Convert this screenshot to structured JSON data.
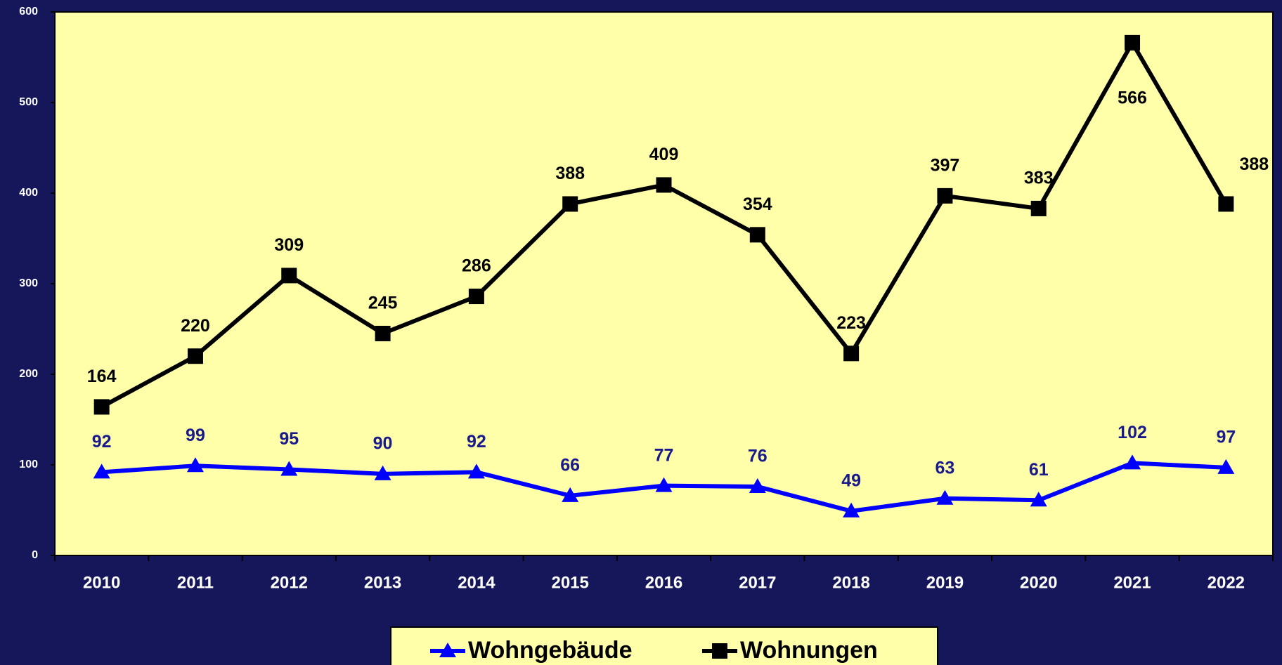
{
  "chart_data": {
    "type": "line",
    "categories": [
      "2010",
      "2011",
      "2012",
      "2013",
      "2014",
      "2015",
      "2016",
      "2017",
      "2018",
      "2019",
      "2020",
      "2021",
      "2022"
    ],
    "series": [
      {
        "name": "Wohngebäude",
        "color": "#0000ff",
        "label_color": "#1a1a8c",
        "marker": "triangle",
        "values": [
          92,
          99,
          95,
          90,
          92,
          66,
          77,
          76,
          49,
          63,
          61,
          102,
          97
        ]
      },
      {
        "name": "Wohnungen",
        "color": "#000000",
        "label_color": "#000000",
        "marker": "square",
        "values": [
          164,
          220,
          309,
          245,
          286,
          388,
          409,
          354,
          223,
          397,
          383,
          566,
          388
        ]
      }
    ],
    "ylim": [
      0,
      600
    ],
    "yticks": [
      0,
      100,
      200,
      300,
      400,
      500,
      600
    ],
    "legend": "bottom"
  }
}
